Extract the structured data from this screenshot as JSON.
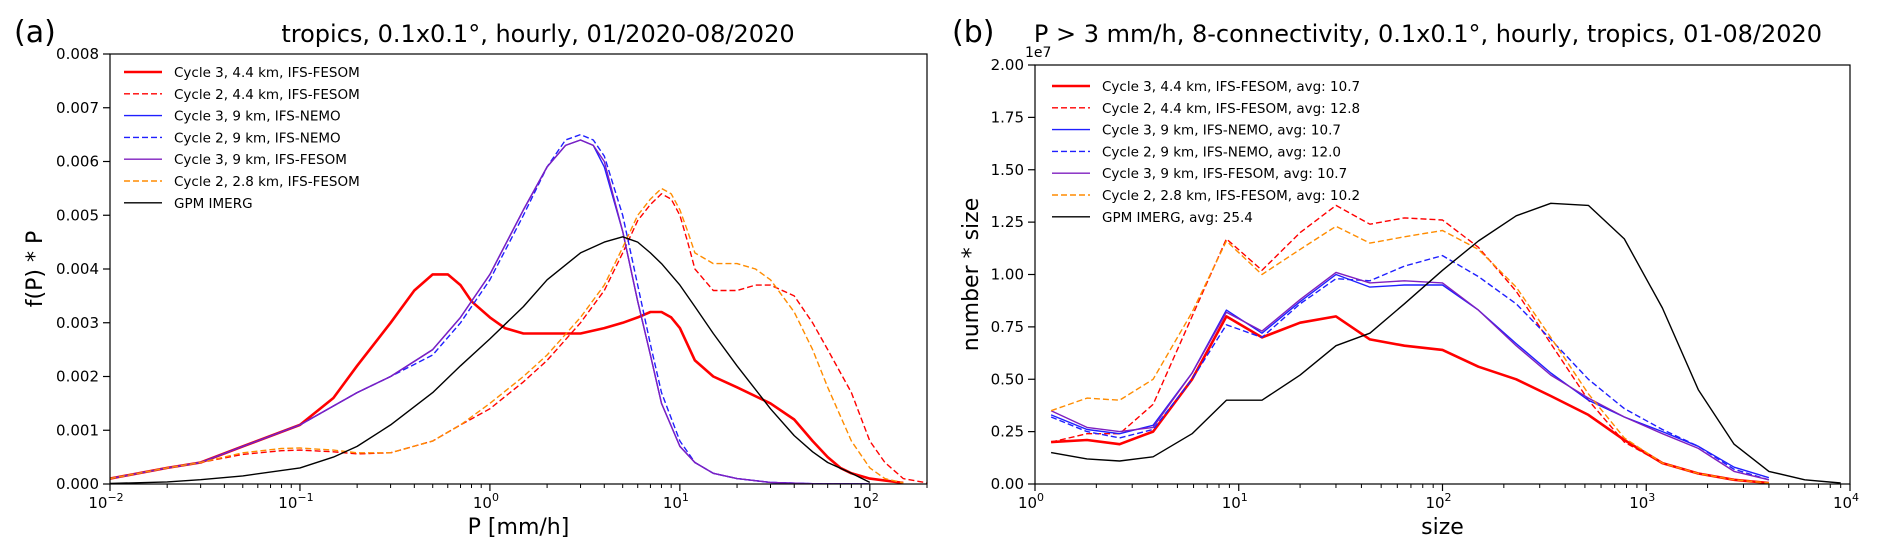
{
  "chart_data": [
    {
      "panel_label": "(a)",
      "type": "line",
      "title": "tropics, 0.1x0.1°, hourly, 01/2020-08/2020",
      "xlabel": "P [mm/h]",
      "ylabel": "f(P) * P",
      "xscale": "log",
      "xlim": [
        0.01,
        200
      ],
      "ylim": [
        0,
        0.008
      ],
      "legend_position": "upper-left",
      "xticks": [
        {
          "v": 0.01,
          "base": "10",
          "exp": "−2"
        },
        {
          "v": 0.1,
          "base": "10",
          "exp": "−1"
        },
        {
          "v": 1,
          "base": "10",
          "exp": "0"
        },
        {
          "v": 10,
          "base": "10",
          "exp": "1"
        },
        {
          "v": 100,
          "base": "10",
          "exp": "2"
        }
      ],
      "yticks": [
        {
          "v": 0,
          "label": "0.000"
        },
        {
          "v": 0.001,
          "label": "0.001"
        },
        {
          "v": 0.002,
          "label": "0.002"
        },
        {
          "v": 0.003,
          "label": "0.003"
        },
        {
          "v": 0.004,
          "label": "0.004"
        },
        {
          "v": 0.005,
          "label": "0.005"
        },
        {
          "v": 0.006,
          "label": "0.006"
        },
        {
          "v": 0.007,
          "label": "0.007"
        },
        {
          "v": 0.008,
          "label": "0.008"
        }
      ],
      "series": [
        {
          "name": "Cycle 3, 4.4 km, IFS-FESOM",
          "color": "#ff0000",
          "dash": "solid",
          "width": 2.6,
          "x": [
            0.01,
            0.02,
            0.03,
            0.05,
            0.1,
            0.15,
            0.2,
            0.3,
            0.4,
            0.5,
            0.6,
            0.7,
            0.8,
            1,
            1.2,
            1.5,
            2,
            3,
            4,
            5,
            6,
            7,
            8,
            9,
            10,
            12,
            15,
            20,
            30,
            40,
            50,
            60,
            70,
            80,
            100,
            150
          ],
          "y": [
            0.0001,
            0.0003,
            0.0004,
            0.0007,
            0.0011,
            0.0016,
            0.0022,
            0.003,
            0.0036,
            0.0039,
            0.0039,
            0.0037,
            0.0034,
            0.0031,
            0.0029,
            0.0028,
            0.0028,
            0.0028,
            0.0029,
            0.003,
            0.0031,
            0.0032,
            0.0032,
            0.0031,
            0.0029,
            0.0023,
            0.002,
            0.0018,
            0.0015,
            0.0012,
            0.0008,
            0.0005,
            0.0003,
            0.0002,
            0.0001,
            2e-05
          ]
        },
        {
          "name": "Cycle 2, 4.4 km, IFS-FESOM",
          "color": "#ff0000",
          "dash": "dashed",
          "width": 1.4,
          "x": [
            0.01,
            0.02,
            0.03,
            0.05,
            0.08,
            0.1,
            0.15,
            0.2,
            0.3,
            0.5,
            0.7,
            1,
            1.5,
            2,
            3,
            4,
            5,
            6,
            7,
            8,
            9,
            10,
            11,
            12,
            15,
            20,
            25,
            30,
            40,
            50,
            60,
            80,
            100,
            120,
            150,
            200
          ],
          "y": [
            0.0001,
            0.0003,
            0.0004,
            0.00055,
            0.00062,
            0.00063,
            0.0006,
            0.00056,
            0.00058,
            0.0008,
            0.0011,
            0.0014,
            0.0019,
            0.0023,
            0.003,
            0.0036,
            0.0043,
            0.0049,
            0.0052,
            0.0054,
            0.0053,
            0.005,
            0.0045,
            0.004,
            0.0036,
            0.0036,
            0.0037,
            0.0037,
            0.0035,
            0.003,
            0.0025,
            0.0017,
            0.0008,
            0.0004,
            0.0001,
            2e-05
          ]
        },
        {
          "name": "Cycle 3, 9 km, IFS-NEMO",
          "color": "#1f1fff",
          "dash": "solid",
          "width": 1.4,
          "x": [
            0.01,
            0.02,
            0.03,
            0.05,
            0.1,
            0.2,
            0.3,
            0.5,
            0.7,
            1,
            1.5,
            2,
            2.5,
            3,
            3.5,
            4,
            5,
            6,
            7,
            8,
            10,
            12,
            15,
            20,
            30,
            50,
            100
          ],
          "y": [
            0.0001,
            0.0003,
            0.0004,
            0.0007,
            0.0011,
            0.0017,
            0.002,
            0.0025,
            0.0031,
            0.0039,
            0.0051,
            0.0059,
            0.0063,
            0.0064,
            0.0063,
            0.0059,
            0.0047,
            0.0034,
            0.0024,
            0.0015,
            0.0007,
            0.0004,
            0.0002,
            0.0001,
            3e-05,
            5e-06,
            0
          ]
        },
        {
          "name": "Cycle 2, 9 km, IFS-NEMO",
          "color": "#1f1fff",
          "dash": "dashed",
          "width": 1.4,
          "x": [
            0.01,
            0.02,
            0.03,
            0.05,
            0.1,
            0.2,
            0.3,
            0.5,
            0.7,
            1,
            1.5,
            2,
            2.5,
            3,
            3.5,
            4,
            5,
            6,
            7,
            8,
            10,
            12,
            15,
            20,
            30,
            50,
            100
          ],
          "y": [
            0.0001,
            0.0003,
            0.0004,
            0.0007,
            0.0011,
            0.0017,
            0.002,
            0.0024,
            0.003,
            0.0038,
            0.005,
            0.0059,
            0.0064,
            0.0065,
            0.0064,
            0.0061,
            0.005,
            0.0037,
            0.0026,
            0.0017,
            0.0008,
            0.0004,
            0.0002,
            0.0001,
            3e-05,
            5e-06,
            0
          ]
        },
        {
          "name": "Cycle 3, 9 km, IFS-FESOM",
          "color": "#7f1fbf",
          "dash": "solid",
          "width": 1.4,
          "x": [
            0.01,
            0.02,
            0.03,
            0.05,
            0.1,
            0.2,
            0.3,
            0.5,
            0.7,
            1,
            1.5,
            2,
            2.5,
            3,
            3.5,
            4,
            5,
            6,
            7,
            8,
            10,
            12,
            15,
            20,
            30,
            50,
            100
          ],
          "y": [
            0.0001,
            0.0003,
            0.0004,
            0.0007,
            0.0011,
            0.0017,
            0.002,
            0.0025,
            0.0031,
            0.0039,
            0.0051,
            0.0059,
            0.0063,
            0.0064,
            0.0063,
            0.006,
            0.0047,
            0.0034,
            0.0024,
            0.0015,
            0.0007,
            0.0004,
            0.0002,
            0.0001,
            3e-05,
            5e-06,
            0
          ]
        },
        {
          "name": "Cycle 2, 2.8 km, IFS-FESOM",
          "color": "#ff8c00",
          "dash": "dashed",
          "width": 1.4,
          "x": [
            0.01,
            0.02,
            0.03,
            0.05,
            0.08,
            0.1,
            0.15,
            0.2,
            0.3,
            0.5,
            0.7,
            1,
            1.5,
            2,
            3,
            4,
            5,
            6,
            7,
            8,
            9,
            10,
            11,
            12,
            15,
            20,
            25,
            30,
            40,
            50,
            60,
            80,
            100,
            120,
            150
          ],
          "y": [
            0.0001,
            0.0003,
            0.0004,
            0.00058,
            0.00066,
            0.00067,
            0.00063,
            0.00058,
            0.00058,
            0.0008,
            0.0011,
            0.0015,
            0.002,
            0.0024,
            0.0031,
            0.0037,
            0.0044,
            0.005,
            0.0053,
            0.0055,
            0.0054,
            0.0051,
            0.0047,
            0.0043,
            0.0041,
            0.0041,
            0.004,
            0.0038,
            0.0032,
            0.0025,
            0.0018,
            0.0008,
            0.0003,
            0.0001,
            2e-05
          ]
        },
        {
          "name": "GPM IMERG",
          "color": "#000000",
          "dash": "solid",
          "width": 1.4,
          "x": [
            0.01,
            0.02,
            0.03,
            0.05,
            0.1,
            0.15,
            0.2,
            0.3,
            0.5,
            0.7,
            1,
            1.5,
            2,
            3,
            4,
            5,
            6,
            7,
            8,
            10,
            12,
            15,
            20,
            30,
            40,
            50,
            60,
            80,
            100
          ],
          "y": [
            1e-05,
            4e-05,
            8e-05,
            0.00015,
            0.0003,
            0.0005,
            0.0007,
            0.0011,
            0.0017,
            0.0022,
            0.0027,
            0.0033,
            0.0038,
            0.0043,
            0.0045,
            0.0046,
            0.0045,
            0.0043,
            0.0041,
            0.0037,
            0.0033,
            0.0028,
            0.0022,
            0.0014,
            0.0009,
            0.0006,
            0.0004,
            0.0002,
            3e-05
          ]
        }
      ]
    },
    {
      "panel_label": "(b)",
      "type": "line",
      "title": "P > 3 mm/h, 8-connectivity, 0.1x0.1°, hourly, tropics, 01-08/2020",
      "xlabel": "size",
      "ylabel": "number * size",
      "y_multiplier": "1e7",
      "xscale": "log",
      "xlim": [
        1,
        10000
      ],
      "ylim": [
        0,
        2.0
      ],
      "legend_position": "upper-left",
      "xticks": [
        {
          "v": 1,
          "base": "10",
          "exp": "0"
        },
        {
          "v": 10,
          "base": "10",
          "exp": "1"
        },
        {
          "v": 100,
          "base": "10",
          "exp": "2"
        },
        {
          "v": 1000,
          "base": "10",
          "exp": "3"
        },
        {
          "v": 10000,
          "base": "10",
          "exp": "4"
        }
      ],
      "yticks": [
        {
          "v": 0,
          "label": "0.00"
        },
        {
          "v": 0.25,
          "label": "0.25"
        },
        {
          "v": 0.5,
          "label": "0.50"
        },
        {
          "v": 0.75,
          "label": "0.75"
        },
        {
          "v": 1.0,
          "label": "1.00"
        },
        {
          "v": 1.25,
          "label": "1.25"
        },
        {
          "v": 1.5,
          "label": "1.50"
        },
        {
          "v": 1.75,
          "label": "1.75"
        },
        {
          "v": 2.0,
          "label": "2.00"
        }
      ],
      "series": [
        {
          "name": "Cycle 3, 4.4 km, IFS-FESOM, avg: 10.7",
          "color": "#ff0000",
          "dash": "solid",
          "width": 2.6,
          "x": [
            1.2,
            1.8,
            2.6,
            3.8,
            5.9,
            8.7,
            13,
            20,
            30,
            44,
            65,
            100,
            150,
            230,
            340,
            520,
            780,
            1200,
            1800,
            2700,
            4000
          ],
          "y": [
            0.2,
            0.21,
            0.19,
            0.25,
            0.5,
            0.8,
            0.7,
            0.77,
            0.8,
            0.69,
            0.66,
            0.64,
            0.56,
            0.5,
            0.42,
            0.33,
            0.21,
            0.1,
            0.05,
            0.02,
            0.005
          ]
        },
        {
          "name": "Cycle 2, 4.4 km, IFS-FESOM, avg: 12.8",
          "color": "#ff0000",
          "dash": "dashed",
          "width": 1.4,
          "x": [
            1.2,
            1.8,
            2.6,
            3.8,
            5.9,
            8.7,
            13,
            20,
            30,
            44,
            65,
            100,
            150,
            230,
            340,
            520,
            780,
            1200,
            1800,
            2700,
            4000
          ],
          "y": [
            0.2,
            0.24,
            0.24,
            0.38,
            0.8,
            1.17,
            1.02,
            1.2,
            1.33,
            1.24,
            1.27,
            1.26,
            1.13,
            0.92,
            0.67,
            0.4,
            0.2,
            0.1,
            0.05,
            0.02,
            0.005
          ]
        },
        {
          "name": "Cycle 3, 9 km, IFS-NEMO, avg: 10.7",
          "color": "#1f1fff",
          "dash": "solid",
          "width": 1.4,
          "x": [
            1.2,
            1.8,
            2.6,
            3.8,
            5.9,
            8.7,
            13,
            20,
            30,
            44,
            65,
            100,
            150,
            230,
            340,
            520,
            780,
            1200,
            1800,
            2700,
            4000
          ],
          "y": [
            0.33,
            0.26,
            0.24,
            0.28,
            0.53,
            0.83,
            0.72,
            0.87,
            1.0,
            0.94,
            0.95,
            0.95,
            0.83,
            0.67,
            0.53,
            0.4,
            0.32,
            0.25,
            0.18,
            0.08,
            0.03
          ]
        },
        {
          "name": "Cycle 2, 9 km, IFS-NEMO, avg: 12.0",
          "color": "#1f1fff",
          "dash": "dashed",
          "width": 1.4,
          "x": [
            1.2,
            1.8,
            2.6,
            3.8,
            5.9,
            8.7,
            13,
            20,
            30,
            44,
            65,
            100,
            150,
            230,
            340,
            520,
            780,
            1200,
            1800,
            2700,
            4000
          ],
          "y": [
            0.32,
            0.25,
            0.22,
            0.26,
            0.5,
            0.76,
            0.7,
            0.86,
            0.98,
            0.97,
            1.04,
            1.09,
            0.99,
            0.86,
            0.69,
            0.5,
            0.36,
            0.26,
            0.18,
            0.07,
            0.02
          ]
        },
        {
          "name": "Cycle 3, 9 km, IFS-FESOM, avg: 10.7",
          "color": "#7f1fbf",
          "dash": "solid",
          "width": 1.4,
          "x": [
            1.2,
            1.8,
            2.6,
            3.8,
            5.9,
            8.7,
            13,
            20,
            30,
            44,
            65,
            100,
            150,
            230,
            340,
            520,
            780,
            1200,
            1800,
            2700,
            4000
          ],
          "y": [
            0.35,
            0.27,
            0.25,
            0.27,
            0.53,
            0.82,
            0.73,
            0.88,
            1.01,
            0.96,
            0.97,
            0.96,
            0.83,
            0.66,
            0.52,
            0.41,
            0.32,
            0.24,
            0.17,
            0.06,
            0.02
          ]
        },
        {
          "name": "Cycle 2, 2.8 km, IFS-FESOM, avg: 10.2",
          "color": "#ff8c00",
          "dash": "dashed",
          "width": 1.4,
          "x": [
            1.2,
            1.8,
            2.6,
            3.8,
            5.9,
            8.7,
            13,
            20,
            30,
            44,
            65,
            100,
            150,
            230,
            340,
            520,
            780,
            1200,
            1800,
            2700,
            4000
          ],
          "y": [
            0.35,
            0.41,
            0.4,
            0.5,
            0.82,
            1.16,
            1.0,
            1.12,
            1.23,
            1.15,
            1.18,
            1.21,
            1.12,
            0.94,
            0.7,
            0.43,
            0.22,
            0.1,
            0.05,
            0.02,
            0.005
          ]
        },
        {
          "name": "GPM IMERG, avg: 25.4",
          "color": "#000000",
          "dash": "solid",
          "width": 1.4,
          "x": [
            1.2,
            1.8,
            2.6,
            3.8,
            5.9,
            8.7,
            13,
            20,
            30,
            44,
            65,
            100,
            150,
            230,
            340,
            520,
            780,
            1200,
            1800,
            2700,
            4000,
            6000,
            9000
          ],
          "y": [
            0.15,
            0.12,
            0.11,
            0.13,
            0.24,
            0.4,
            0.4,
            0.52,
            0.66,
            0.72,
            0.86,
            1.02,
            1.16,
            1.28,
            1.34,
            1.33,
            1.17,
            0.84,
            0.45,
            0.19,
            0.06,
            0.02,
            0.005
          ]
        }
      ]
    }
  ]
}
